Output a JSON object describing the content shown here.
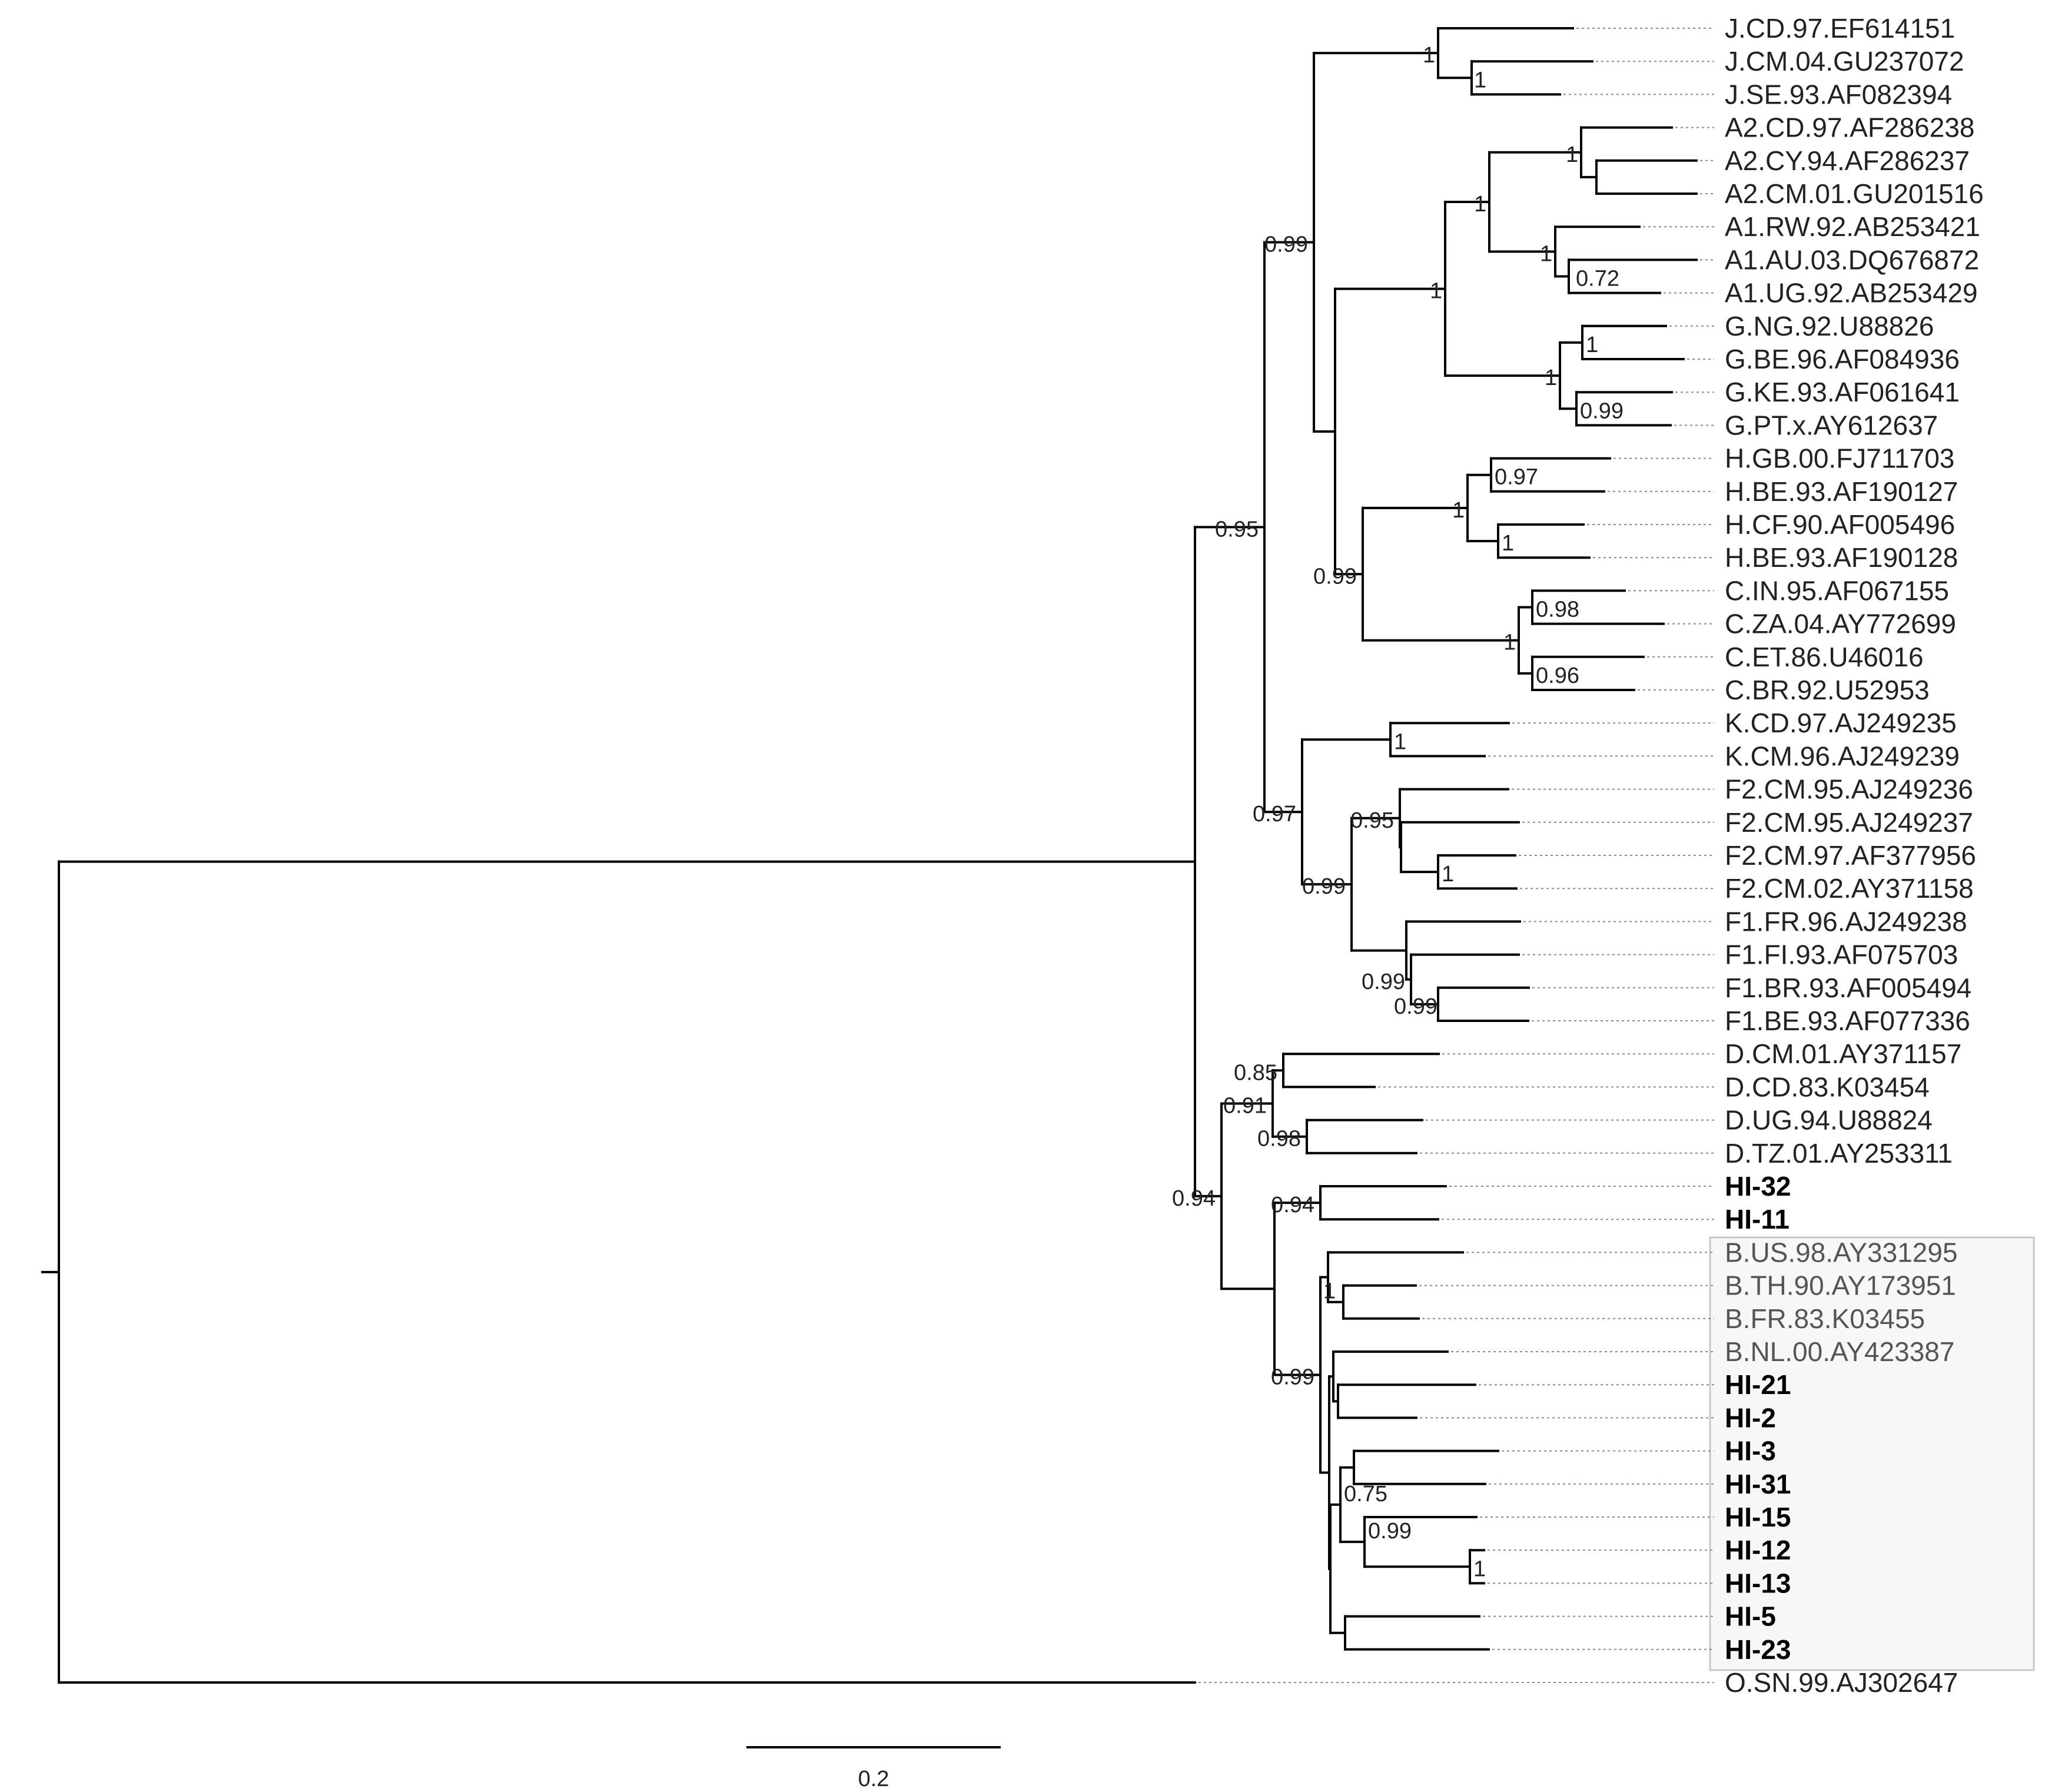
{
  "tips": [
    {
      "key": "j1",
      "label": "J.CD.97.EF614151"
    },
    {
      "key": "j2",
      "label": "J.CM.04.GU237072"
    },
    {
      "key": "j3",
      "label": "J.SE.93.AF082394"
    },
    {
      "key": "a21",
      "label": "A2.CD.97.AF286238"
    },
    {
      "key": "a22",
      "label": "A2.CY.94.AF286237"
    },
    {
      "key": "a23",
      "label": "A2.CM.01.GU201516"
    },
    {
      "key": "a11",
      "label": "A1.RW.92.AB253421"
    },
    {
      "key": "a12",
      "label": "A1.AU.03.DQ676872"
    },
    {
      "key": "a13",
      "label": "A1.UG.92.AB253429"
    },
    {
      "key": "g1",
      "label": "G.NG.92.U88826"
    },
    {
      "key": "g2",
      "label": "G.BE.96.AF084936"
    },
    {
      "key": "g3",
      "label": "G.KE.93.AF061641"
    },
    {
      "key": "g4",
      "label": "G.PT.x.AY612637"
    },
    {
      "key": "h1",
      "label": "H.GB.00.FJ711703"
    },
    {
      "key": "h2",
      "label": "H.BE.93.AF190127"
    },
    {
      "key": "h3",
      "label": "H.CF.90.AF005496"
    },
    {
      "key": "h4",
      "label": "H.BE.93.AF190128"
    },
    {
      "key": "c1",
      "label": "C.IN.95.AF067155"
    },
    {
      "key": "c2",
      "label": "C.ZA.04.AY772699"
    },
    {
      "key": "c3",
      "label": "C.ET.86.U46016"
    },
    {
      "key": "c4",
      "label": "C.BR.92.U52953"
    },
    {
      "key": "k1",
      "label": "K.CD.97.AJ249235"
    },
    {
      "key": "k2",
      "label": "K.CM.96.AJ249239"
    },
    {
      "key": "f21",
      "label": "F2.CM.95.AJ249236"
    },
    {
      "key": "f22",
      "label": "F2.CM.95.AJ249237"
    },
    {
      "key": "f23",
      "label": "F2.CM.97.AF377956"
    },
    {
      "key": "f24",
      "label": "F2.CM.02.AY371158"
    },
    {
      "key": "f11",
      "label": "F1.FR.96.AJ249238"
    },
    {
      "key": "f12",
      "label": "F1.FI.93.AF075703"
    },
    {
      "key": "f13",
      "label": "F1.BR.93.AF005494"
    },
    {
      "key": "f14",
      "label": "F1.BE.93.AF077336"
    },
    {
      "key": "d1",
      "label": "D.CM.01.AY371157"
    },
    {
      "key": "d2",
      "label": "D.CD.83.K03454"
    },
    {
      "key": "d3",
      "label": "D.UG.94.U88824"
    },
    {
      "key": "d4",
      "label": "D.TZ.01.AY253311"
    },
    {
      "key": "hi32",
      "label": "HI-32",
      "bold": true
    },
    {
      "key": "hi11",
      "label": "HI-11",
      "bold": true
    },
    {
      "key": "b1",
      "label": "B.US.98.AY331295",
      "ref_b": true
    },
    {
      "key": "b2",
      "label": "B.TH.90.AY173951",
      "ref_b": true
    },
    {
      "key": "b3",
      "label": "B.FR.83.K03455",
      "ref_b": true
    },
    {
      "key": "b4",
      "label": "B.NL.00.AY423387",
      "ref_b": true
    },
    {
      "key": "hi21",
      "label": "HI-21",
      "bold": true
    },
    {
      "key": "hi2",
      "label": "HI-2",
      "bold": true
    },
    {
      "key": "hi3",
      "label": "HI-3",
      "bold": true
    },
    {
      "key": "hi31",
      "label": "HI-31",
      "bold": true
    },
    {
      "key": "hi15",
      "label": "HI-15",
      "bold": true
    },
    {
      "key": "hi12",
      "label": "HI-12",
      "bold": true
    },
    {
      "key": "hi13",
      "label": "HI-13",
      "bold": true
    },
    {
      "key": "hi5",
      "label": "HI-5",
      "bold": true
    },
    {
      "key": "hi23",
      "label": "HI-23",
      "bold": true
    },
    {
      "key": "o1",
      "label": "O.SN.99.AJ302647"
    }
  ],
  "support_values": [
    {
      "node": "j23",
      "value": "1"
    },
    {
      "node": "jroot",
      "value": "1"
    },
    {
      "node": "a2",
      "value": "1"
    },
    {
      "node": "a1s",
      "value": "0.72"
    },
    {
      "node": "a1",
      "value": "1"
    },
    {
      "node": "aa",
      "value": "1"
    },
    {
      "node": "g12",
      "value": "1"
    },
    {
      "node": "g34",
      "value": "0.99"
    },
    {
      "node": "g",
      "value": "1"
    },
    {
      "node": "agroup",
      "value": "1"
    },
    {
      "node": "jag",
      "value": "0.99"
    },
    {
      "node": "h12",
      "value": "0.97"
    },
    {
      "node": "h34",
      "value": "1"
    },
    {
      "node": "h",
      "value": "1"
    },
    {
      "node": "c12",
      "value": "0.98"
    },
    {
      "node": "c34",
      "value": "0.96"
    },
    {
      "node": "c",
      "value": "1"
    },
    {
      "node": "hc",
      "value": "0.99"
    },
    {
      "node": "k",
      "value": "1"
    },
    {
      "node": "f234",
      "value": "1"
    },
    {
      "node": "f2",
      "value": "0.95"
    },
    {
      "node": "f1s",
      "value": "0.99"
    },
    {
      "node": "f1",
      "value": "0.99"
    },
    {
      "node": "f",
      "value": "0.99"
    },
    {
      "node": "kf",
      "value": "0.97"
    },
    {
      "node": "upper",
      "value": "0.95"
    },
    {
      "node": "d12",
      "value": "0.85"
    },
    {
      "node": "d34",
      "value": "0.98"
    },
    {
      "node": "d",
      "value": "0.91"
    },
    {
      "node": "hi3211",
      "value": "0.94"
    },
    {
      "node": "b23",
      "value": "1"
    },
    {
      "node": "hi1213",
      "value": "1"
    },
    {
      "node": "hi151213",
      "value": "0.99"
    },
    {
      "node": "hisub",
      "value": "0.75"
    },
    {
      "node": "bclade",
      "value": "0.99"
    },
    {
      "node": "lower",
      "value": "0.94"
    }
  ],
  "scale_bar": {
    "label": "0.2",
    "length": 0.2
  }
}
